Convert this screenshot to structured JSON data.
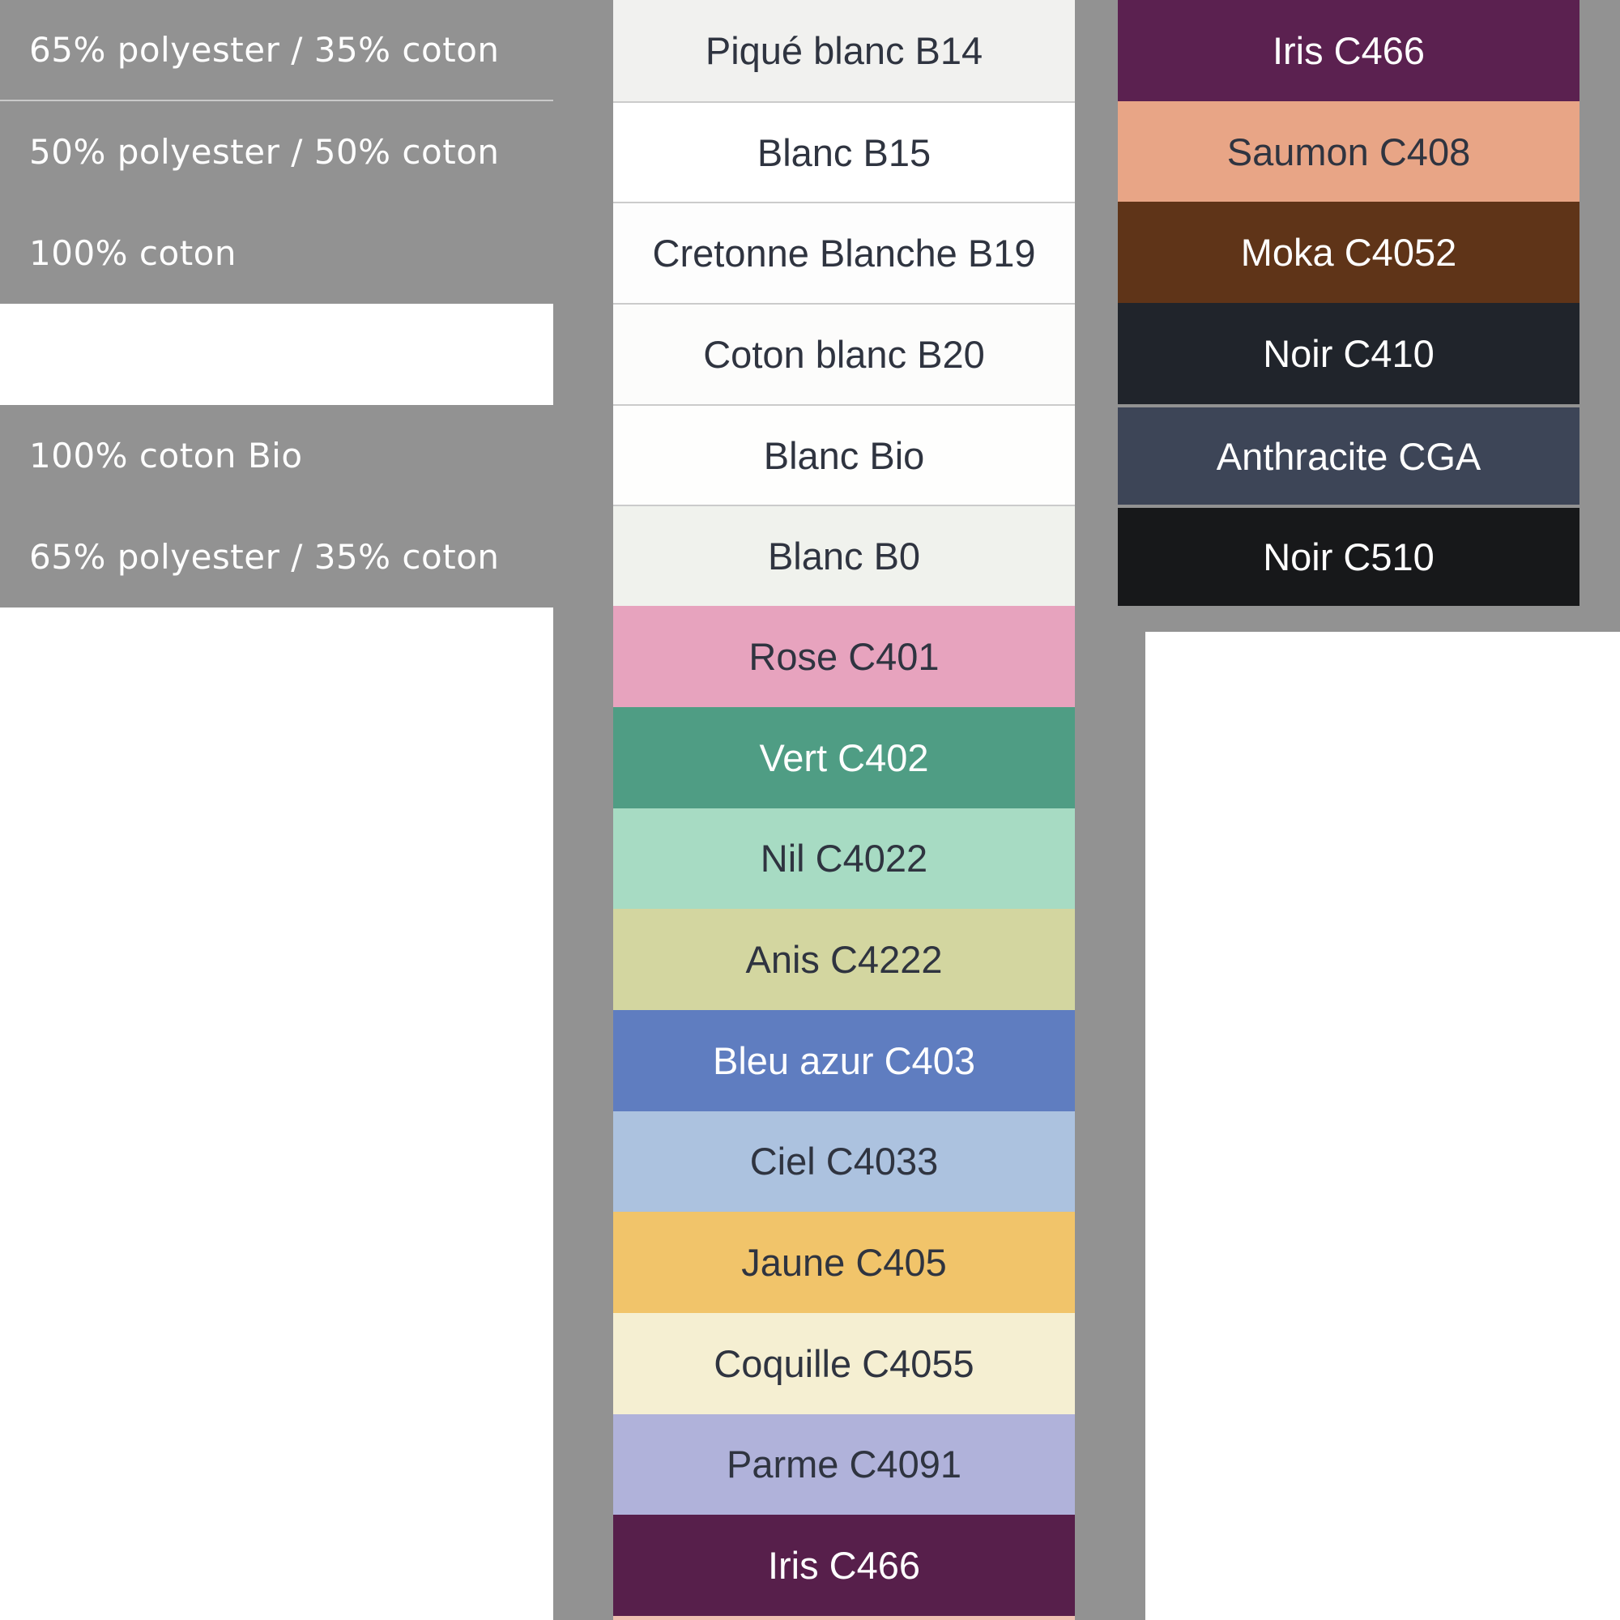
{
  "colors": {
    "backdrop_gray": "#929292",
    "page_white": "#ffffff",
    "row_divider": "#CBCBCB",
    "left_divider": "rgba(255,255,255,0.5)",
    "label_dark": "#2F3440",
    "label_light": "#ffffff"
  },
  "left_panel": {
    "rows": [
      {
        "label": "65% polyester / 35% coton",
        "variant": "gray",
        "divider": true
      },
      {
        "label": "50% polyester / 50% coton",
        "variant": "gray"
      },
      {
        "label": "100% coton",
        "variant": "gray"
      },
      {
        "label": "",
        "variant": "white"
      },
      {
        "label": "100% coton Bio",
        "variant": "gray"
      },
      {
        "label": "65% polyester / 35% coton",
        "variant": "gray"
      }
    ]
  },
  "middle_column": {
    "rows": [
      {
        "label": "Piqué blanc B14",
        "color": "#F1F1EF",
        "text": "dark",
        "texture": "stripes"
      },
      {
        "label": "Blanc B15",
        "color": "#FFFFFF",
        "text": "dark",
        "divider": true
      },
      {
        "label": "Cretonne Blanche B19",
        "color": "#FDFDFD",
        "text": "dark",
        "divider": true
      },
      {
        "label": "Coton blanc B20",
        "color": "#FCFCFB",
        "text": "dark",
        "divider": true
      },
      {
        "label": "Blanc Bio",
        "color": "#FEFEFD",
        "text": "dark",
        "divider": true
      },
      {
        "label": "Blanc B0",
        "color": "#F0F2ED",
        "text": "dark",
        "divider": true
      },
      {
        "label": "Rose C401",
        "color": "#E7A3BE",
        "text": "dark"
      },
      {
        "label": "Vert C402",
        "color": "#4F9D84",
        "text": "light"
      },
      {
        "label": "Nil C4022",
        "color": "#A7DBC3",
        "text": "dark"
      },
      {
        "label": "Anis C4222",
        "color": "#D3D6A0",
        "text": "dark"
      },
      {
        "label": "Bleu azur C403",
        "color": "#5F7DC0",
        "text": "light"
      },
      {
        "label": "Ciel C4033",
        "color": "#ACC2DF",
        "text": "dark"
      },
      {
        "label": "Jaune C405",
        "color": "#F1C46A",
        "text": "dark",
        "texture": "twill"
      },
      {
        "label": "Coquille C4055",
        "color": "#F5EFD2",
        "text": "dark"
      },
      {
        "label": "Parme C4091",
        "color": "#B0B2DA",
        "text": "dark"
      },
      {
        "label": "Iris C466",
        "color": "#571F4B",
        "text": "light"
      }
    ],
    "partial_bottom": {
      "label": "",
      "color": "#EFC0B1"
    }
  },
  "right_column": {
    "rows": [
      {
        "label": "Iris C466",
        "color": "#5B2150",
        "text": "light"
      },
      {
        "label": "Saumon C408",
        "color": "#E8A586",
        "text": "dark"
      },
      {
        "label": "Moka C4052",
        "color": "#5F3418",
        "text": "light"
      },
      {
        "label": "Noir C410",
        "color": "#20242B",
        "text": "light"
      },
      {
        "label": "Anthracite CGA",
        "color": "#3D4557",
        "text": "light",
        "gap": true
      },
      {
        "label": "Noir C510",
        "color": "#17181A",
        "text": "light",
        "gap": true
      }
    ]
  }
}
